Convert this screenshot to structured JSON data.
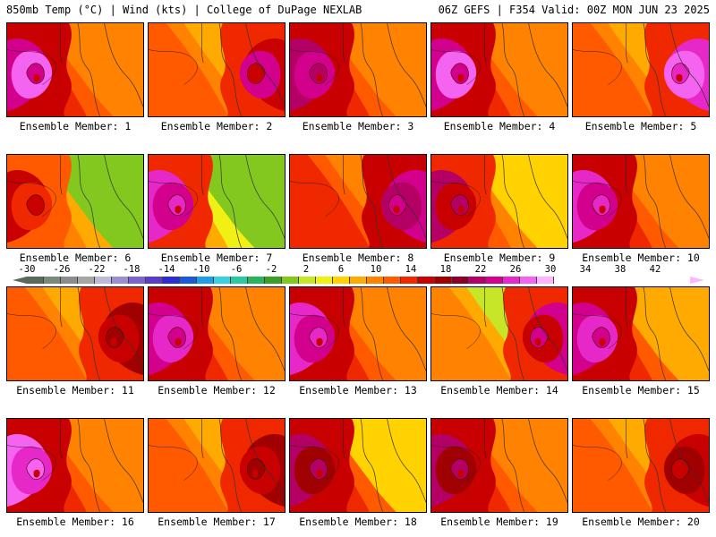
{
  "header": {
    "left": "850mb Temp (°C) | Wind (kts) | College of DuPage NEXLAB",
    "right": "06Z GEFS | F354 Valid: 00Z MON JUN 23 2025"
  },
  "colorbar": {
    "ticks": [
      "-30",
      "-26",
      "-22",
      "-18",
      "-14",
      "-10",
      "-6",
      "-2",
      "2",
      "6",
      "10",
      "14",
      "18",
      "22",
      "26",
      "30",
      "34",
      "38",
      "42"
    ],
    "colors": [
      "#5b6b5b",
      "#7a8a7a",
      "#8c8c8c",
      "#a6a6a6",
      "#bcbcd8",
      "#9b8fd4",
      "#7b63d0",
      "#5a3cc8",
      "#2d2dd4",
      "#1a5ad8",
      "#1e9ee8",
      "#3ad0e0",
      "#2ec8a0",
      "#28b45a",
      "#3ca028",
      "#82c81e",
      "#c8e628",
      "#f0f014",
      "#ffd200",
      "#ffaa00",
      "#ff8200",
      "#ff5a00",
      "#f02800",
      "#c80000",
      "#a00000",
      "#8c0028",
      "#b40064",
      "#d2008c",
      "#e628c8",
      "#f564f0",
      "#ffb4ff"
    ]
  },
  "panels": [
    {
      "label": "Ensemble Member: 1",
      "icon": "temperature-map",
      "colors": [
        "#d2008c",
        "#f564f0",
        "#c80000",
        "#f02800",
        "#ff5a00",
        "#ff8200"
      ]
    },
    {
      "label": "Ensemble Member: 2",
      "icon": "temperature-map",
      "colors": [
        "#c80000",
        "#d2008c",
        "#f02800",
        "#ff5a00",
        "#ff8200",
        "#ffaa00"
      ]
    },
    {
      "label": "Ensemble Member: 3",
      "icon": "temperature-map",
      "colors": [
        "#b40064",
        "#d2008c",
        "#c80000",
        "#f02800",
        "#ff5a00",
        "#ff8200"
      ]
    },
    {
      "label": "Ensemble Member: 4",
      "icon": "temperature-map",
      "colors": [
        "#d2008c",
        "#f564f0",
        "#c80000",
        "#f02800",
        "#ff5a00",
        "#ff8200"
      ]
    },
    {
      "label": "Ensemble Member: 5",
      "icon": "temperature-map",
      "colors": [
        "#e628c8",
        "#f564f0",
        "#f02800",
        "#ff5a00",
        "#ff8200",
        "#ffaa00"
      ]
    },
    {
      "label": "Ensemble Member: 6",
      "icon": "temperature-map",
      "colors": [
        "#c80000",
        "#f02800",
        "#ff5a00",
        "#ff8200",
        "#ffaa00",
        "#82c81e"
      ]
    },
    {
      "label": "Ensemble Member: 7",
      "icon": "temperature-map",
      "colors": [
        "#e628c8",
        "#d2008c",
        "#f02800",
        "#ffaa00",
        "#f0f014",
        "#82c81e"
      ]
    },
    {
      "label": "Ensemble Member: 8",
      "icon": "temperature-map",
      "colors": [
        "#d2008c",
        "#b40064",
        "#c80000",
        "#f02800",
        "#ff5a00",
        "#ff8200"
      ]
    },
    {
      "label": "Ensemble Member: 9",
      "icon": "temperature-map",
      "colors": [
        "#b40064",
        "#c80000",
        "#f02800",
        "#ff5a00",
        "#ff8200",
        "#ffd200"
      ]
    },
    {
      "label": "Ensemble Member: 10",
      "icon": "temperature-map",
      "colors": [
        "#e628c8",
        "#d2008c",
        "#c80000",
        "#f02800",
        "#ff5a00",
        "#ff8200"
      ]
    },
    {
      "label": "Ensemble Member: 11",
      "icon": "temperature-map",
      "colors": [
        "#a00000",
        "#c80000",
        "#f02800",
        "#ff5a00",
        "#ff8200",
        "#ffaa00"
      ]
    },
    {
      "label": "Ensemble Member: 12",
      "icon": "temperature-map",
      "colors": [
        "#d2008c",
        "#e628c8",
        "#c80000",
        "#f02800",
        "#ff5a00",
        "#ff8200"
      ]
    },
    {
      "label": "Ensemble Member: 13",
      "icon": "temperature-map",
      "colors": [
        "#e628c8",
        "#d2008c",
        "#c80000",
        "#f02800",
        "#ff5a00",
        "#ff8200"
      ]
    },
    {
      "label": "Ensemble Member: 14",
      "icon": "temperature-map",
      "colors": [
        "#d2008c",
        "#c80000",
        "#f02800",
        "#ff8200",
        "#ffaa00",
        "#c8e628"
      ]
    },
    {
      "label": "Ensemble Member: 15",
      "icon": "temperature-map",
      "colors": [
        "#d2008c",
        "#e628c8",
        "#c80000",
        "#f02800",
        "#ff5a00",
        "#ffaa00"
      ]
    },
    {
      "label": "Ensemble Member: 16",
      "icon": "temperature-map",
      "colors": [
        "#f564f0",
        "#e628c8",
        "#c80000",
        "#f02800",
        "#ff5a00",
        "#ff8200"
      ]
    },
    {
      "label": "Ensemble Member: 17",
      "icon": "temperature-map",
      "colors": [
        "#a00000",
        "#c80000",
        "#f02800",
        "#ff5a00",
        "#ff8200",
        "#ffaa00"
      ]
    },
    {
      "label": "Ensemble Member: 18",
      "icon": "temperature-map",
      "colors": [
        "#b40064",
        "#a00000",
        "#c80000",
        "#f02800",
        "#ff5a00",
        "#ffd200"
      ]
    },
    {
      "label": "Ensemble Member: 19",
      "icon": "temperature-map",
      "colors": [
        "#b40064",
        "#a00000",
        "#c80000",
        "#f02800",
        "#ff5a00",
        "#ff8200"
      ]
    },
    {
      "label": "Ensemble Member: 20",
      "icon": "temperature-map",
      "colors": [
        "#c80000",
        "#a00000",
        "#f02800",
        "#ff5a00",
        "#ff8200",
        "#ffaa00"
      ]
    }
  ]
}
